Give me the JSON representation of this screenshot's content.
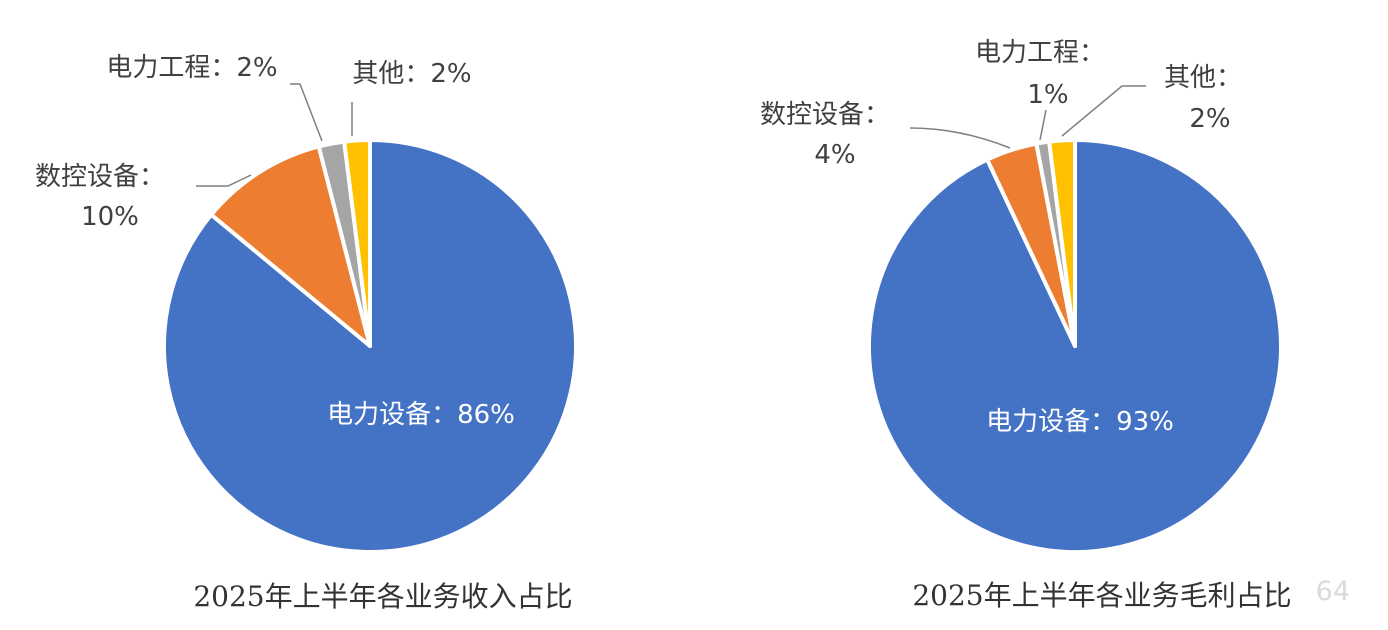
{
  "colors": {
    "power_equipment": "#4472C4",
    "cnc_equipment": "#ED7D31",
    "power_engineering": "#A5A5A5",
    "other": "#FFC000"
  },
  "watermark": "64",
  "chart_data": [
    {
      "type": "pie",
      "title": "2025年上半年各业务收入占比",
      "slices": [
        {
          "name": "电力设备",
          "value": 86,
          "label_text": "电力设备：86%",
          "color": "#4472C4"
        },
        {
          "name": "数控设备",
          "value": 10,
          "label_name": "数控设备：",
          "label_value": "10%",
          "color": "#ED7D31"
        },
        {
          "name": "电力工程",
          "value": 2,
          "label_text": "电力工程：2%",
          "color": "#A5A5A5"
        },
        {
          "name": "其他",
          "value": 2,
          "label_text": "其他：2%",
          "color": "#FFC000"
        }
      ]
    },
    {
      "type": "pie",
      "title": "2025年上半年各业务毛利占比",
      "slices": [
        {
          "name": "电力设备",
          "value": 93,
          "label_text": "电力设备：93%",
          "color": "#4472C4"
        },
        {
          "name": "数控设备",
          "value": 4,
          "label_name": "数控设备：",
          "label_value": "4%",
          "color": "#ED7D31"
        },
        {
          "name": "电力工程",
          "value": 1,
          "label_name": "电力工程：",
          "label_value": "1%",
          "color": "#A5A5A5"
        },
        {
          "name": "其他",
          "value": 2,
          "label_name": "其他：",
          "label_value": "2%",
          "color": "#FFC000"
        }
      ]
    }
  ]
}
